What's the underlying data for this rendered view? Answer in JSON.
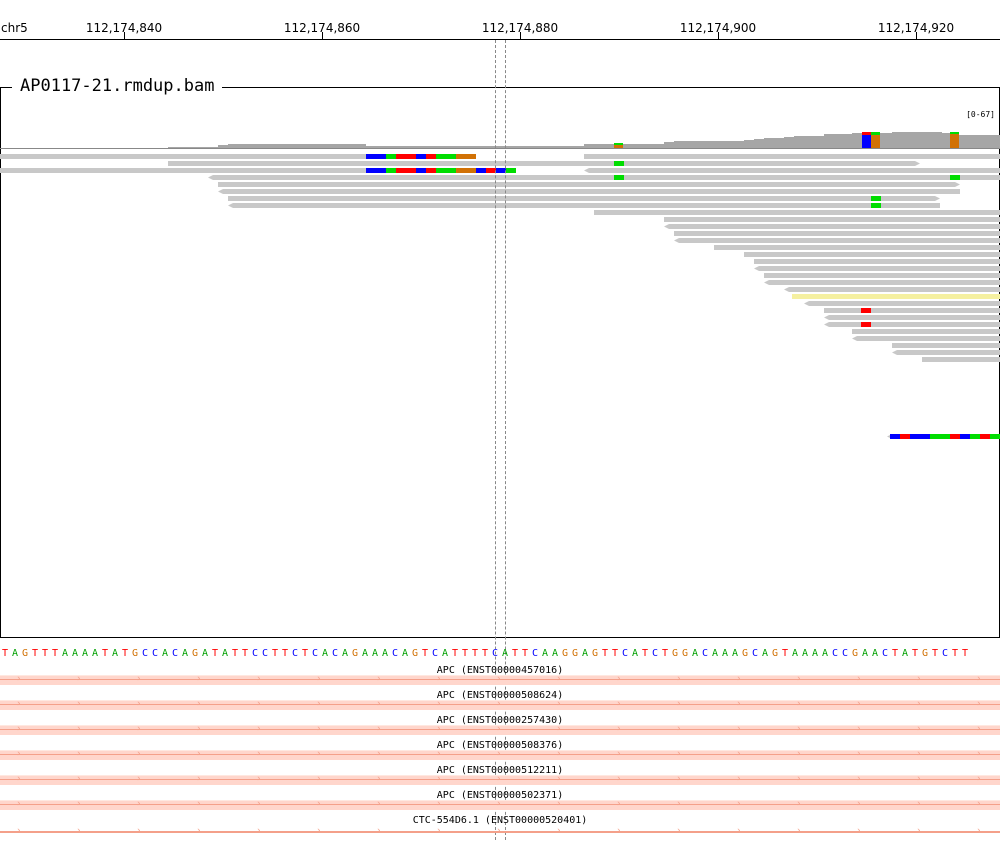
{
  "ruler": {
    "chrom": "chr5",
    "ticks": [
      {
        "label": "112,174,840",
        "pos": 112174840
      },
      {
        "label": "112,174,860",
        "pos": 112174860
      },
      {
        "label": "112,174,880",
        "pos": 112174880
      },
      {
        "label": "112,174,900",
        "pos": 112174900
      },
      {
        "label": "112,174,920",
        "pos": 112174920
      }
    ]
  },
  "track": {
    "title": "AP0117-21.rmdup.bam",
    "coverage_range": "[0-67]"
  },
  "sequence": "TAGTTTAAAATATGCCACAGATATTCCTTCTCACAGAAACAGTCATTTTCATTCAAGGAGTTCATCTGGACAAAGCAGTAAAACCGAACTATGTCTT",
  "genes": [
    {
      "label": "APC (ENST00000457016)"
    },
    {
      "label": "APC (ENST00000508624)"
    },
    {
      "label": "APC (ENST00000257430)"
    },
    {
      "label": "APC (ENST00000508376)"
    },
    {
      "label": "APC (ENST00000512211)"
    },
    {
      "label": "APC (ENST00000502371)"
    },
    {
      "label": "CTC-554D6.1 (ENST00000520401)"
    }
  ],
  "colors": {
    "read": "#c8c8c8",
    "coverage": "#a6a6a6",
    "A": "#00dd00",
    "C": "#0000ff",
    "G": "#d17105",
    "T": "#ff0000",
    "gene_fill": "#ffd6cc",
    "gene_line": "#f4a08a",
    "highlight": "#f5f0a0"
  }
}
